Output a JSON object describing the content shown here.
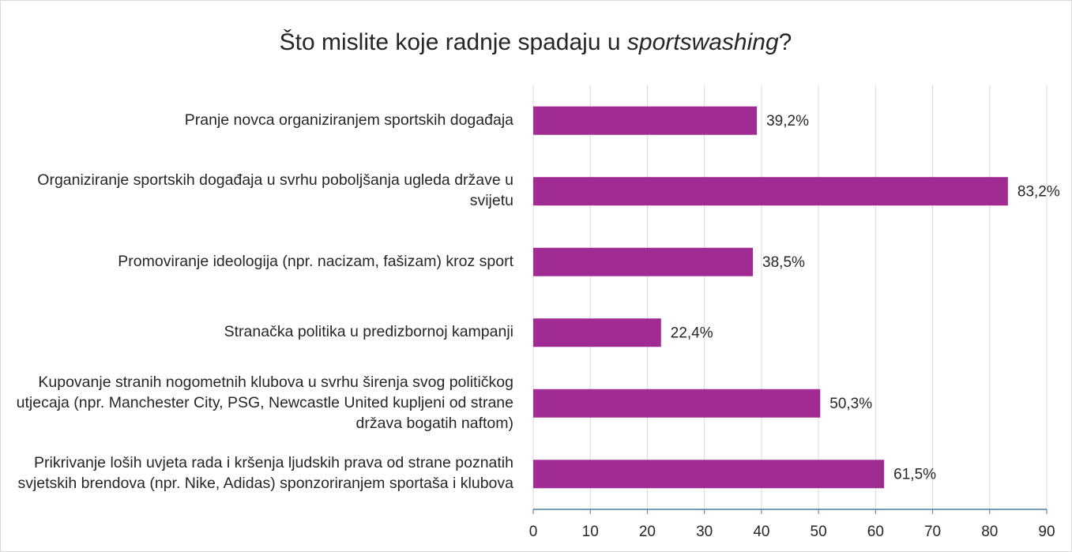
{
  "chart_data": {
    "type": "bar",
    "orientation": "horizontal",
    "title": [
      "Što mislite koje radnje spadaju u ",
      "sportswashing",
      "?"
    ],
    "categories": [
      "Pranje novca organiziranjem sportskih događaja",
      "Organiziranje sportskih događaja u svrhu poboljšanja ugleda države u svijetu",
      "Promoviranje ideologija (npr. nacizam, fašizam) kroz sport",
      "Stranačka politika u predizbornoj kampanji",
      "Kupovanje stranih nogometnih klubova u svrhu širenja svog političkog utjecaja (npr. Manchester City, PSG, Newcastle United kupljeni od strane država bogatih naftom)",
      "Prikrivanje loših uvjeta rada i kršenja ljudskih prava od strane poznatih svjetskih brendova (npr. Nike, Adidas) sponzoriranjem sportaša i klubova"
    ],
    "values": [
      39.2,
      83.2,
      38.5,
      22.4,
      50.3,
      61.5
    ],
    "value_labels": [
      "39,2%",
      "83,2%",
      "38,5%",
      "22,4%",
      "50,3%",
      "61,5%"
    ],
    "color": "#a02b93",
    "xlim": [
      0,
      90
    ],
    "xticks": [
      0,
      10,
      20,
      30,
      40,
      50,
      60,
      70,
      80,
      90
    ],
    "grid": true
  }
}
